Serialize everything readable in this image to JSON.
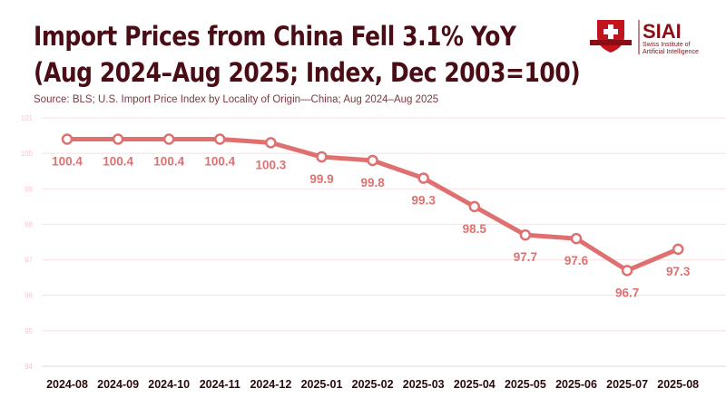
{
  "title_line1": "Import Prices from China Fell 3.1% YoY",
  "title_line2": "(Aug 2024–Aug 2025; Index, Dec 2003=100)",
  "source": "Source: BLS; U.S. Import Price Index by Locality of Origin—China; Aug 2024–Aug 2025",
  "logo": {
    "name": "SIAI",
    "subtitle_line1": "Swiss Institute of",
    "subtitle_line2": "Artificial Intelligence"
  },
  "colors": {
    "line": "#e07070",
    "title": "#4a0d16",
    "grid": "#f8e0e2",
    "ytick": "#f2c9cd",
    "label": "#e07070"
  },
  "chart_data": {
    "type": "line",
    "categories": [
      "2024-08",
      "2024-09",
      "2024-10",
      "2024-11",
      "2024-12",
      "2025-01",
      "2025-02",
      "2025-03",
      "2025-04",
      "2025-05",
      "2025-06",
      "2025-07",
      "2025-08"
    ],
    "values": [
      100.4,
      100.4,
      100.4,
      100.4,
      100.3,
      99.9,
      99.8,
      99.3,
      98.5,
      97.7,
      97.6,
      96.7,
      97.3
    ],
    "data_labels": [
      "100.4",
      "100.4",
      "100.4",
      "100.4",
      "100.3",
      "99.9",
      "99.8",
      "99.3",
      "98.5",
      "97.7",
      "97.6",
      "96.7",
      "97.3"
    ],
    "ylim": [
      94,
      101
    ],
    "yticks": [
      "94",
      "95",
      "96",
      "97",
      "98",
      "99",
      "100",
      "101"
    ],
    "grid": true,
    "xlabel": "",
    "ylabel": ""
  }
}
